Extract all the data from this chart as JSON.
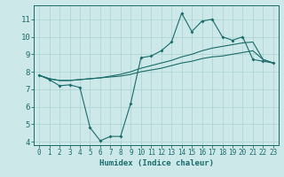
{
  "xlabel": "Humidex (Indice chaleur)",
  "bg_color": "#cce8e8",
  "line_color": "#1a6b6b",
  "grid_color": "#aad0d0",
  "xlim": [
    -0.5,
    23.5
  ],
  "ylim": [
    3.8,
    11.8
  ],
  "yticks": [
    4,
    5,
    6,
    7,
    8,
    9,
    10,
    11
  ],
  "xticks": [
    0,
    1,
    2,
    3,
    4,
    5,
    6,
    7,
    8,
    9,
    10,
    11,
    12,
    13,
    14,
    15,
    16,
    17,
    18,
    19,
    20,
    21,
    22,
    23
  ],
  "line1_x": [
    0,
    1,
    2,
    3,
    4,
    5,
    6,
    7,
    8,
    9,
    10,
    11,
    12,
    13,
    14,
    15,
    16,
    17,
    18,
    19,
    20,
    21,
    22,
    23
  ],
  "line1_y": [
    7.8,
    7.55,
    7.2,
    7.25,
    7.1,
    4.8,
    4.05,
    4.3,
    4.3,
    6.2,
    8.8,
    8.9,
    9.2,
    9.7,
    11.35,
    10.3,
    10.9,
    11.0,
    10.0,
    9.8,
    10.0,
    8.7,
    8.6,
    8.5
  ],
  "line2_x": [
    0,
    1,
    2,
    3,
    4,
    5,
    6,
    7,
    8,
    9,
    10,
    11,
    12,
    13,
    14,
    15,
    16,
    17,
    18,
    19,
    20,
    21,
    22,
    23
  ],
  "line2_y": [
    7.8,
    7.6,
    7.5,
    7.5,
    7.55,
    7.6,
    7.65,
    7.7,
    7.75,
    7.85,
    8.0,
    8.1,
    8.2,
    8.35,
    8.5,
    8.6,
    8.75,
    8.85,
    8.9,
    9.0,
    9.1,
    9.2,
    8.7,
    8.5
  ],
  "line3_x": [
    0,
    1,
    2,
    3,
    4,
    5,
    6,
    7,
    8,
    9,
    10,
    11,
    12,
    13,
    14,
    15,
    16,
    17,
    18,
    19,
    20,
    21,
    22,
    23
  ],
  "line3_y": [
    7.8,
    7.6,
    7.5,
    7.5,
    7.55,
    7.6,
    7.65,
    7.75,
    7.85,
    8.0,
    8.2,
    8.35,
    8.5,
    8.65,
    8.85,
    9.0,
    9.2,
    9.35,
    9.45,
    9.55,
    9.65,
    9.7,
    8.7,
    8.5
  ]
}
